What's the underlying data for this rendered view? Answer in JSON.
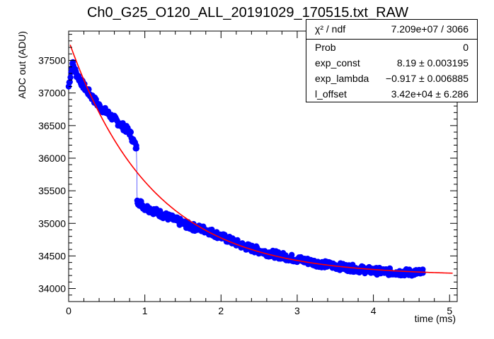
{
  "chart_data": {
    "type": "scatter",
    "title": "Ch0_G25_O120_ALL_20191029_170515.txt_RAW",
    "xlabel": "time (ms)",
    "ylabel": "ADC out (ADU)",
    "xlim": [
      0,
      5.1
    ],
    "ylim": [
      33800,
      37950
    ],
    "x_ticks": [
      0,
      1,
      2,
      3,
      4,
      5
    ],
    "x_tick_labels": [
      "0",
      "1",
      "2",
      "3",
      "4",
      "5"
    ],
    "y_ticks": [
      34000,
      34500,
      35000,
      35500,
      36000,
      36500,
      37000,
      37500
    ],
    "y_tick_labels": [
      "34000",
      "34500",
      "35000",
      "35500",
      "36000",
      "36500",
      "37000",
      "37500"
    ],
    "marker_color": "#0000ff",
    "fit_color": "#ff0000",
    "grid": false,
    "series": [
      {
        "values_note": "",
        "x": [
          0.0,
          0.05,
          0.1,
          0.2,
          0.3,
          0.4,
          0.5,
          0.6,
          0.7,
          0.8,
          0.89,
          0.9,
          1.0,
          1.2,
          1.4,
          1.6,
          1.8,
          2.0,
          2.3,
          2.6,
          3.0,
          3.3,
          3.6,
          4.0,
          4.3,
          4.65
        ],
        "y": [
          37100,
          37450,
          37300,
          37100,
          36950,
          36800,
          36700,
          36600,
          36500,
          36400,
          36150,
          35350,
          35250,
          35150,
          35050,
          34950,
          34900,
          34800,
          34650,
          34550,
          34450,
          34380,
          34330,
          34270,
          34250,
          34240
        ]
      }
    ],
    "fit": {
      "exp_const": 8.19,
      "exp_lambda": -0.917,
      "l_offset": 34200
    },
    "stats": {
      "header_label": "χ² / ndf",
      "header_value": "7.209e+07 / 3066",
      "rows": [
        {
          "label": "Prob",
          "value": "0"
        },
        {
          "label": "exp_const",
          "value": "8.19 ± 0.003195"
        },
        {
          "label": "exp_lambda",
          "value": "−0.917 ± 0.006885"
        },
        {
          "label": "l_offset",
          "value": "3.42e+04 ± 6.286"
        }
      ]
    }
  }
}
